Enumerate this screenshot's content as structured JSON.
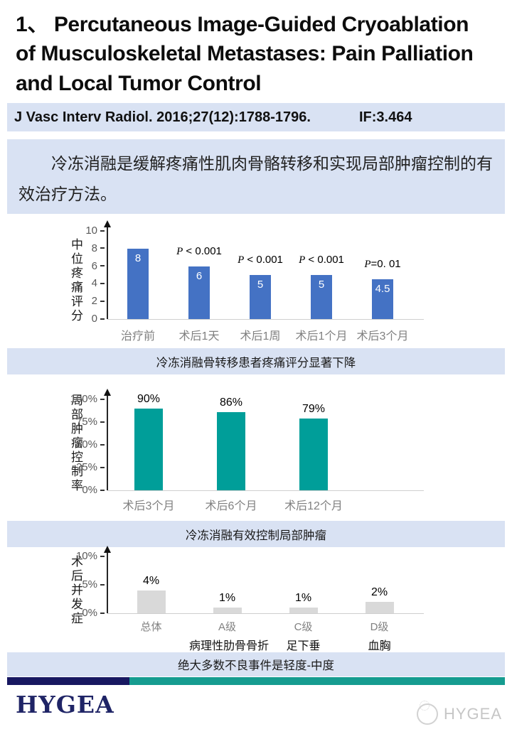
{
  "header": {
    "title": "1、 Percutaneous Image-Guided Cryoablation of Musculoskeletal Metastases: Pain Palliation and Local Tumor Control",
    "citation": "J Vasc Interv Radiol. 2016;27(12):1788-1796.",
    "impact_factor": "IF:3.464"
  },
  "summary": {
    "text": "冷冻消融是缓解疼痛性肌肉骨骼转移和实现局部肿瘤控制的有效治疗方法。"
  },
  "chart_data": [
    {
      "type": "bar",
      "ylabel": "中位疼痛评分",
      "xlabel": "",
      "ylim": [
        0,
        10
      ],
      "yticks": [
        "10",
        "8",
        "6",
        "4",
        "2",
        "0"
      ],
      "categories": [
        "治疗前",
        "术后1天",
        "术后1周",
        "术后1个月",
        "术后3个月"
      ],
      "values": [
        8,
        6,
        5,
        5,
        4.5
      ],
      "bar_labels": [
        "8",
        "6",
        "5",
        "5",
        "4.5"
      ],
      "annotations": [
        "",
        "P < 0.001",
        "P < 0.001",
        "P < 0.001",
        "P=0. 01"
      ],
      "bar_color": "#4472c4",
      "label_position": "inside",
      "grid": "off",
      "legend": "none",
      "caption": "冷冻消融骨转移患者疼痛评分显著下降"
    },
    {
      "type": "bar",
      "ylabel": "局部肿瘤控制率",
      "xlabel": "",
      "ylim": [
        0,
        100
      ],
      "yticks": [
        "100%",
        "75%",
        "50%",
        "25%",
        "0%"
      ],
      "categories": [
        "术后3个月",
        "术后6个月",
        "术后12个月"
      ],
      "values": [
        90,
        86,
        79
      ],
      "bar_labels": [
        "90%",
        "86%",
        "79%"
      ],
      "annotations": [
        "",
        "",
        ""
      ],
      "bar_color": "#009e99",
      "label_position": "above",
      "grid": "off",
      "legend": "none",
      "caption": "冷冻消融有效控制局部肿瘤"
    },
    {
      "type": "bar",
      "ylabel": "术后并发症",
      "xlabel": "",
      "ylim": [
        0,
        10
      ],
      "yticks": [
        "10%",
        "5%",
        "0%"
      ],
      "categories": [
        "总体",
        "A级",
        "C级",
        "D级"
      ],
      "sub_labels": [
        "",
        "病理性肋骨骨折",
        "足下垂",
        "血胸"
      ],
      "values": [
        4,
        1,
        1,
        2
      ],
      "bar_labels": [
        "4%",
        "1%",
        "1%",
        "2%"
      ],
      "annotations": [
        "",
        "",
        "",
        ""
      ],
      "bar_color": "#d9d9d9",
      "label_position": "above",
      "grid": "off",
      "legend": "none",
      "caption": "绝大多数不良事件是轻度-中度"
    }
  ],
  "footer": {
    "logo_text": "HYGEA",
    "watermark_text": "HYGEA",
    "colors": {
      "navy": "#181861",
      "teal": "#169c90"
    }
  }
}
